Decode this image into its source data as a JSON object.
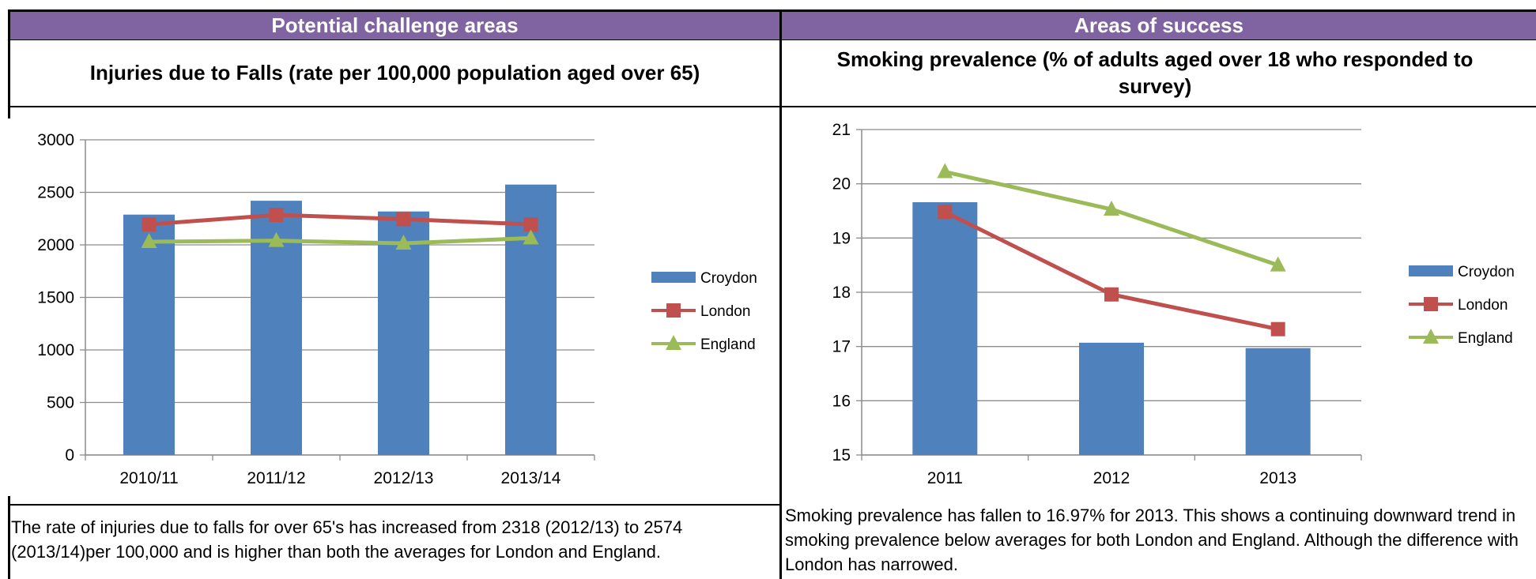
{
  "left_panel": {
    "header": "Potential challenge areas",
    "chart_title": "Injuries due to Falls (rate per 100,000 population aged over 65)",
    "commentary": "The rate of injuries due to falls for over 65's has increased from 2318 (2012/13) to 2574 (2013/14)per 100,000 and is higher than both the averages for London and England."
  },
  "right_panel": {
    "header": "Areas of success",
    "chart_title": "Smoking prevalence (% of adults aged over 18 who responded to survey)",
    "commentary": "Smoking prevalence has fallen to 16.97% for 2013. This shows a continuing downward trend in smoking prevalence below averages for both London and England. Although the difference with London has narrowed."
  },
  "colors": {
    "header_bg": "#8064a2",
    "croydon": "#4f81bd",
    "london": "#c0504d",
    "england": "#9bbb59",
    "grid": "#8c8c8c"
  },
  "chart_data": [
    {
      "type": "bar",
      "title": "Injuries due to Falls (rate per 100,000 population aged over 65)",
      "categories": [
        "2010/11",
        "2011/12",
        "2012/13",
        "2013/14"
      ],
      "ylim": [
        0,
        3000
      ],
      "yticks": [
        0,
        500,
        1000,
        1500,
        2000,
        2500,
        3000
      ],
      "grid": true,
      "legend_position": "right",
      "series": [
        {
          "name": "Croydon",
          "kind": "bar",
          "marker": "none",
          "values": [
            2288,
            2420,
            2318,
            2574
          ]
        },
        {
          "name": "London",
          "kind": "line",
          "marker": "square",
          "values": [
            2195,
            2285,
            2245,
            2195
          ]
        },
        {
          "name": "England",
          "kind": "line",
          "marker": "triangle",
          "values": [
            2030,
            2040,
            2015,
            2065
          ]
        }
      ]
    },
    {
      "type": "bar",
      "title": "Smoking prevalence (% of adults aged over 18 who responded to survey)",
      "categories": [
        "2011",
        "2012",
        "2013"
      ],
      "ylim": [
        15,
        21
      ],
      "yticks": [
        15,
        16,
        17,
        18,
        19,
        20,
        21
      ],
      "grid": true,
      "legend_position": "right",
      "series": [
        {
          "name": "Croydon",
          "kind": "bar",
          "marker": "none",
          "values": [
            19.66,
            17.07,
            16.97
          ]
        },
        {
          "name": "London",
          "kind": "line",
          "marker": "square",
          "values": [
            19.48,
            17.96,
            17.32
          ]
        },
        {
          "name": "England",
          "kind": "line",
          "marker": "triangle",
          "values": [
            20.22,
            19.53,
            18.5
          ]
        }
      ]
    }
  ]
}
